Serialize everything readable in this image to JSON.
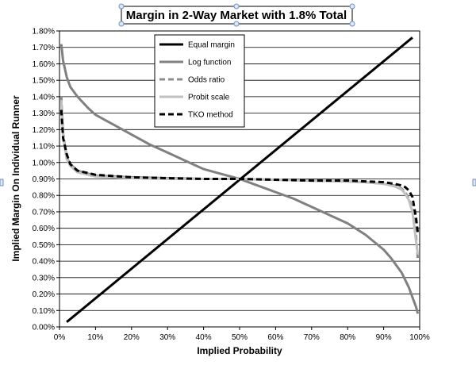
{
  "chart_data": {
    "type": "line",
    "title": "Margin in 2-Way Market with 1.8% Total",
    "xlabel": "Implied Probability",
    "ylabel": "Implied Margin On Individual Runner",
    "xlim": [
      0,
      100
    ],
    "ylim": [
      0,
      1.8
    ],
    "x_ticks": [
      "0%",
      "10%",
      "20%",
      "30%",
      "40%",
      "50%",
      "60%",
      "70%",
      "80%",
      "90%",
      "100%"
    ],
    "y_ticks": [
      "0.00%",
      "0.10%",
      "0.20%",
      "0.30%",
      "0.40%",
      "0.50%",
      "0.60%",
      "0.70%",
      "0.80%",
      "0.90%",
      "1.00%",
      "1.10%",
      "1.20%",
      "1.30%",
      "1.40%",
      "1.50%",
      "1.60%",
      "1.70%",
      "1.80%"
    ],
    "grid": "horizontal",
    "legend_position": "top-center",
    "series": [
      {
        "name": "Equal margin",
        "color": "#000000",
        "style": "solid",
        "x": [
          2,
          98
        ],
        "y": [
          0.03,
          1.76
        ]
      },
      {
        "name": "Log function",
        "color": "#808080",
        "style": "solid",
        "x": [
          0.5,
          1,
          2,
          3,
          5,
          8,
          10,
          15,
          20,
          25,
          30,
          35,
          40,
          45,
          50,
          55,
          60,
          65,
          70,
          75,
          80,
          85,
          90,
          92,
          95,
          97,
          98,
          99,
          99.5
        ],
        "y": [
          1.72,
          1.62,
          1.52,
          1.46,
          1.4,
          1.33,
          1.29,
          1.23,
          1.17,
          1.11,
          1.06,
          1.01,
          0.96,
          0.93,
          0.9,
          0.86,
          0.82,
          0.78,
          0.73,
          0.68,
          0.63,
          0.56,
          0.47,
          0.42,
          0.33,
          0.24,
          0.18,
          0.12,
          0.08
        ]
      },
      {
        "name": "Odds ratio",
        "color": "#8c8c8c",
        "style": "dashed",
        "x": [
          0.5,
          1,
          2,
          3,
          5,
          10,
          20,
          30,
          40,
          50,
          60,
          70,
          80,
          85,
          90,
          93,
          95,
          96,
          97,
          98,
          99,
          99.5
        ],
        "y": [
          1.4,
          1.18,
          1.03,
          0.99,
          0.95,
          0.92,
          0.91,
          0.905,
          0.9,
          0.9,
          0.895,
          0.89,
          0.885,
          0.88,
          0.87,
          0.86,
          0.84,
          0.82,
          0.78,
          0.72,
          0.55,
          0.41
        ]
      },
      {
        "name": "Probit scale",
        "color": "#c0c0c0",
        "style": "solid",
        "x": [
          0.5,
          1,
          2,
          3,
          5,
          10,
          20,
          30,
          40,
          50,
          60,
          70,
          80,
          85,
          90,
          93,
          95,
          96,
          97,
          98,
          99,
          99.5
        ],
        "y": [
          1.38,
          1.16,
          1.02,
          0.98,
          0.94,
          0.915,
          0.905,
          0.9,
          0.9,
          0.9,
          0.895,
          0.89,
          0.885,
          0.88,
          0.87,
          0.855,
          0.835,
          0.81,
          0.77,
          0.7,
          0.52,
          0.44
        ]
      },
      {
        "name": "TKO method",
        "color": "#000000",
        "style": "dashed",
        "x": [
          0.5,
          1,
          2,
          3,
          5,
          10,
          20,
          30,
          40,
          50,
          60,
          70,
          80,
          85,
          90,
          93,
          95,
          96,
          97,
          98,
          99,
          99.5
        ],
        "y": [
          1.32,
          1.15,
          1.05,
          0.99,
          0.95,
          0.925,
          0.91,
          0.905,
          0.9,
          0.9,
          0.895,
          0.89,
          0.89,
          0.885,
          0.88,
          0.87,
          0.86,
          0.85,
          0.83,
          0.79,
          0.66,
          0.57
        ]
      }
    ]
  }
}
